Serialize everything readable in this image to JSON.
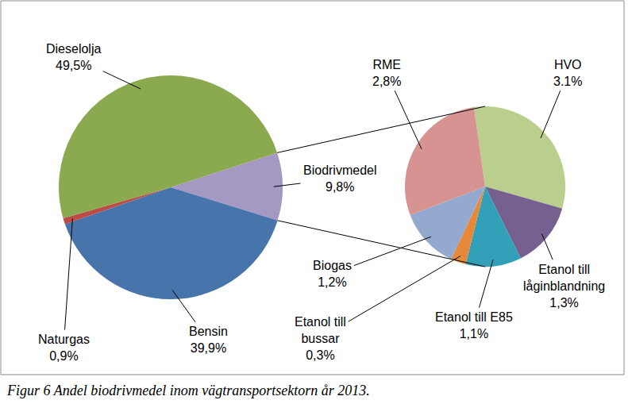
{
  "chart_data": {
    "type": "pie",
    "caption": "Figur 6 Andel biodrivmedel inom vägtransportsektorn år 2013.",
    "data_labels": true,
    "categories": [
      "Biodrivmedel",
      "Bensin",
      "Naturgas",
      "Dieselolja"
    ],
    "values": [
      9.8,
      39.9,
      0.9,
      49.5
    ],
    "value_labels": [
      "9,8%",
      "39,9%",
      "0,9%",
      "49,5%"
    ],
    "colors": [
      "#a598c2",
      "#4674ab",
      "#be4b48",
      "#8ba94f"
    ],
    "breakdown": {
      "of": "Biodrivmedel",
      "categories": [
        "HVO",
        "Etanol till låginblandning",
        "Etanol till E85",
        "Etanol till bussar",
        "Biogas",
        "RME"
      ],
      "values": [
        3.1,
        1.3,
        1.1,
        0.3,
        1.2,
        2.8
      ],
      "value_labels": [
        "3.1%",
        "1,3%",
        "1,1%",
        "0,3%",
        "1,2%",
        "2,8%"
      ],
      "colors": [
        "#bacf8e",
        "#75608f",
        "#31a0b8",
        "#e6893b",
        "#93a9d0",
        "#d69391"
      ]
    }
  }
}
